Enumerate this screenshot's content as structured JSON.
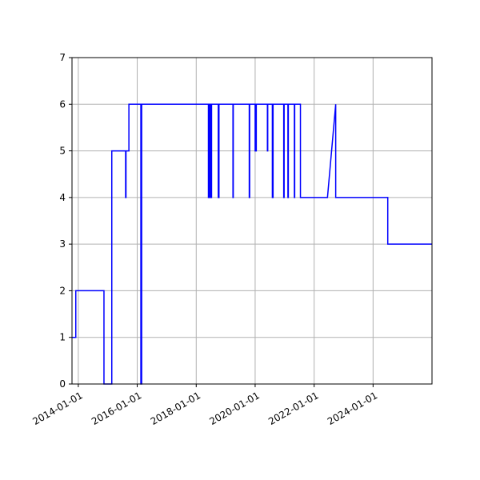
{
  "chart_data": {
    "type": "line",
    "title": "",
    "xlabel": "",
    "ylabel": "",
    "x_axis_kind": "date",
    "xlim": [
      "2013-10-15",
      "2025-12-31"
    ],
    "ylim": [
      0,
      7
    ],
    "grid": true,
    "x_ticks": [
      "2014-01-01",
      "2016-01-01",
      "2018-01-01",
      "2020-01-01",
      "2022-01-01",
      "2024-01-01"
    ],
    "y_ticks": [
      0,
      1,
      2,
      3,
      4,
      5,
      6,
      7
    ],
    "colors": {
      "line": "#0000ff",
      "grid": "#b0b0b0",
      "axes": "#000000"
    },
    "series": [
      {
        "name": "",
        "points": [
          [
            "2013-10-15",
            1
          ],
          [
            "2013-12-01",
            1
          ],
          [
            "2013-12-01",
            2
          ],
          [
            "2014-11-15",
            2
          ],
          [
            "2014-11-15",
            0
          ],
          [
            "2015-02-20",
            0
          ],
          [
            "2015-02-20",
            5
          ],
          [
            "2015-08-10",
            5
          ],
          [
            "2015-08-10",
            4
          ],
          [
            "2015-08-15",
            4
          ],
          [
            "2015-08-15",
            5
          ],
          [
            "2015-09-20",
            5
          ],
          [
            "2015-09-20",
            6
          ],
          [
            "2016-02-15",
            6
          ],
          [
            "2016-02-15",
            0
          ],
          [
            "2016-02-25",
            0
          ],
          [
            "2016-02-25",
            6
          ],
          [
            "2018-06-01",
            6
          ],
          [
            "2018-06-01",
            4
          ],
          [
            "2018-06-10",
            4
          ],
          [
            "2018-06-10",
            6
          ],
          [
            "2018-06-25",
            6
          ],
          [
            "2018-06-25",
            4
          ],
          [
            "2018-07-10",
            4
          ],
          [
            "2018-07-10",
            6
          ],
          [
            "2018-10-01",
            6
          ],
          [
            "2018-10-01",
            4
          ],
          [
            "2018-10-10",
            4
          ],
          [
            "2018-10-10",
            6
          ],
          [
            "2019-04-01",
            6
          ],
          [
            "2019-04-01",
            4
          ],
          [
            "2019-04-05",
            4
          ],
          [
            "2019-04-05",
            6
          ],
          [
            "2019-10-20",
            6
          ],
          [
            "2019-10-20",
            4
          ],
          [
            "2019-10-25",
            4
          ],
          [
            "2019-10-25",
            6
          ],
          [
            "2020-01-01",
            6
          ],
          [
            "2020-01-01",
            5
          ],
          [
            "2020-01-15",
            5
          ],
          [
            "2020-01-15",
            6
          ],
          [
            "2020-06-01",
            6
          ],
          [
            "2020-06-01",
            5
          ],
          [
            "2020-06-05",
            5
          ],
          [
            "2020-06-05",
            6
          ],
          [
            "2020-08-01",
            6
          ],
          [
            "2020-08-01",
            4
          ],
          [
            "2020-08-10",
            4
          ],
          [
            "2020-08-10",
            6
          ],
          [
            "2020-12-20",
            6
          ],
          [
            "2020-12-20",
            4
          ],
          [
            "2020-12-25",
            4
          ],
          [
            "2020-12-25",
            6
          ],
          [
            "2021-02-10",
            6
          ],
          [
            "2021-02-10",
            4
          ],
          [
            "2021-02-15",
            4
          ],
          [
            "2021-02-15",
            6
          ],
          [
            "2021-05-01",
            6
          ],
          [
            "2021-05-01",
            4
          ],
          [
            "2021-05-05",
            4
          ],
          [
            "2021-05-05",
            6
          ],
          [
            "2021-07-15",
            6
          ],
          [
            "2021-07-15",
            4
          ],
          [
            "2022-06-15",
            4
          ],
          [
            "2022-09-25",
            6
          ],
          [
            "2022-09-25",
            4
          ],
          [
            "2024-07-01",
            4
          ],
          [
            "2024-07-01",
            3
          ],
          [
            "2025-12-31",
            3
          ]
        ]
      }
    ]
  }
}
